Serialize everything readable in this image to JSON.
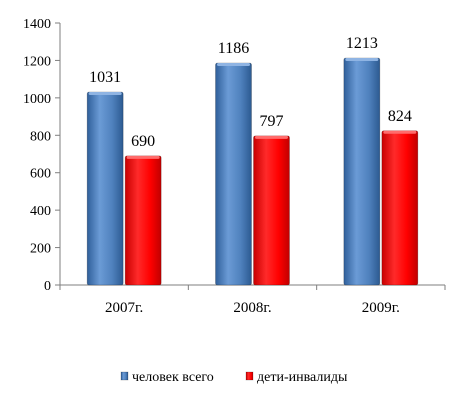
{
  "chart_data": {
    "type": "bar",
    "categories": [
      "2007г.",
      "2008г.",
      "2009г."
    ],
    "series": [
      {
        "name": "человек всего",
        "values": [
          1031,
          1186,
          1213
        ],
        "color": "#4f81bd"
      },
      {
        "name": "дети-инвалиды",
        "values": [
          690,
          797,
          824
        ],
        "color": "#ff0000"
      }
    ],
    "ylim": [
      0,
      1400
    ],
    "yticks": [
      0,
      200,
      400,
      600,
      800,
      1000,
      1200,
      1400
    ],
    "ytick_labels": [
      "0",
      "200",
      "400",
      "600",
      "800",
      "1000",
      "1200",
      "1400"
    ],
    "grid": false,
    "legend_position": "bottom",
    "data_labels": true,
    "title": "",
    "xlabel": "",
    "ylabel": ""
  }
}
